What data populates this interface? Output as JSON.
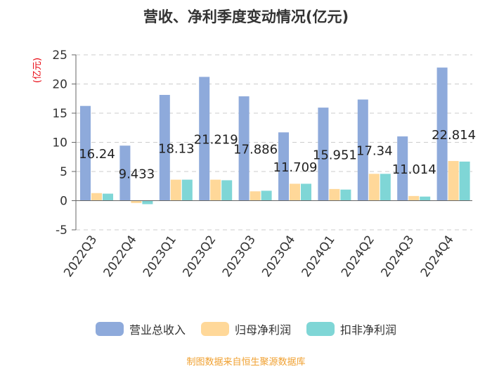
{
  "chart_data": {
    "type": "bar",
    "title": "营收、净利季度变动情况(亿元)",
    "ylabel": "(亿元)",
    "ylim": [
      -5,
      25
    ],
    "yticks": [
      -5,
      0,
      5,
      10,
      15,
      20,
      25
    ],
    "grid": true,
    "legend_position": "bottom",
    "categories": [
      "2022Q3",
      "2022Q4",
      "2023Q1",
      "2023Q2",
      "2023Q3",
      "2023Q4",
      "2024Q1",
      "2024Q2",
      "2024Q3",
      "2024Q4"
    ],
    "series": [
      {
        "name": "营业总收入",
        "color": "#8EAADB",
        "labeled": true,
        "values": [
          16.24,
          9.433,
          18.13,
          21.219,
          17.886,
          11.709,
          15.951,
          17.34,
          11.014,
          22.814
        ]
      },
      {
        "name": "归母净利润",
        "color": "#FFD899",
        "labeled": false,
        "values": [
          1.3,
          -0.4,
          3.6,
          3.6,
          1.6,
          2.9,
          2.0,
          4.6,
          0.8,
          6.8
        ]
      },
      {
        "name": "扣非净利润",
        "color": "#7FD6D6",
        "labeled": false,
        "values": [
          1.2,
          -0.6,
          3.6,
          3.5,
          1.7,
          2.9,
          1.9,
          4.6,
          0.7,
          6.7
        ]
      }
    ],
    "data_labels": [
      "16.24",
      "9.433",
      "18.13",
      "21.219",
      "17.886",
      "11.709",
      "15.951",
      "17.34",
      "11.014",
      "22.814"
    ]
  },
  "source_text": "制图数据来自恒生聚源数据库",
  "colors": {
    "ylabel": "#E8000B",
    "source": "#F0A030",
    "axis": "#666666",
    "grid": "#CCCCCC",
    "text": "#333333"
  }
}
